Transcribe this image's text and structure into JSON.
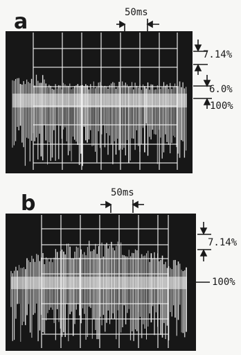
{
  "panels": [
    {
      "letter": "a",
      "time_scale": "50ms",
      "marker_upper": "7.14%",
      "marker_lower": "6.0%",
      "level": "100%"
    },
    {
      "letter": "b",
      "time_scale": "50ms",
      "marker_upper": "7.14%",
      "level": "100%"
    }
  ],
  "colors": {
    "screen": "#171717",
    "trace": "#f2f2f2",
    "ink": "#1a1a1a"
  }
}
